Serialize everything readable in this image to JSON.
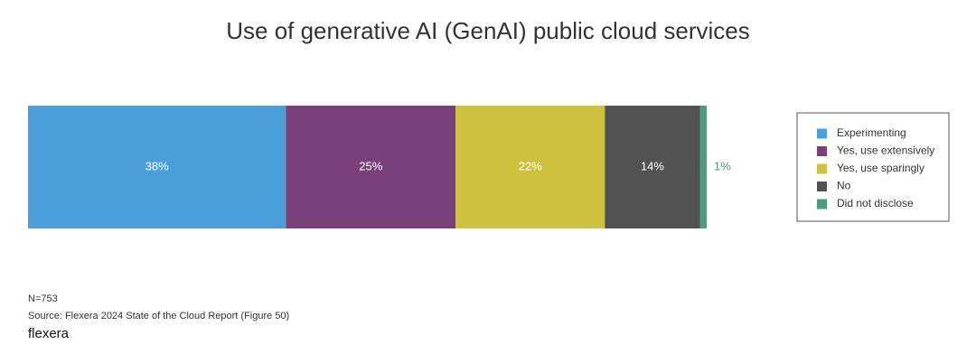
{
  "chart_data": {
    "type": "stacked-bar",
    "orientation": "horizontal",
    "title": "Use of generative AI (GenAI) public cloud services",
    "series": [
      {
        "name": "Experimenting",
        "color": "#4a9fdb",
        "values": [
          38
        ],
        "value_labels": [
          "38%"
        ]
      },
      {
        "name": "Yes, use extensively",
        "color": "#79407a",
        "values": [
          25
        ],
        "value_labels": [
          "25%"
        ]
      },
      {
        "name": "Yes, use sparingly",
        "color": "#cdc23e",
        "values": [
          22
        ],
        "value_labels": [
          "22%"
        ]
      },
      {
        "name": "No",
        "color": "#525252",
        "values": [
          14
        ],
        "value_labels": [
          "14%"
        ]
      },
      {
        "name": "Did not disclose",
        "color": "#4a9d7f",
        "values": [
          1
        ],
        "value_labels": [
          "1%"
        ]
      }
    ],
    "legend": "right",
    "note": "N=753",
    "source": "Source: Flexera 2024 State of the Cloud Report (Figure 50)",
    "logo": "flexera"
  }
}
